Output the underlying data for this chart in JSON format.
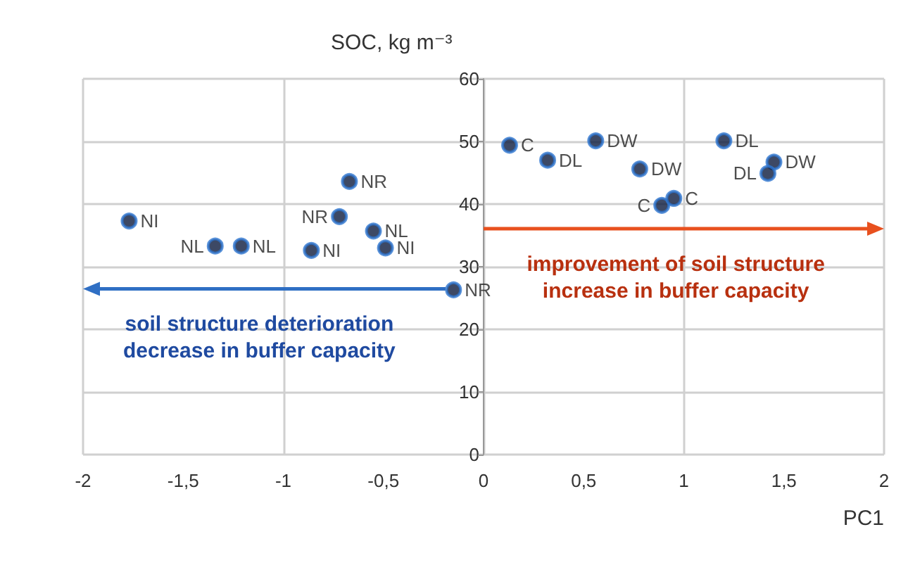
{
  "chart_data": {
    "type": "scatter",
    "xlabel": "PC1",
    "ylabel": "SOC, kg m⁻³",
    "x": [
      -1.77,
      -1.34,
      -1.21,
      -0.86,
      -0.67,
      -0.72,
      -0.55,
      -0.49,
      -0.15,
      0.13,
      0.32,
      0.56,
      0.78,
      0.89,
      0.95,
      1.2,
      1.45,
      1.42
    ],
    "series": [
      {
        "color": "#0d1b3e",
        "values": [
          37.3,
          33.3,
          33.3,
          32.6,
          43.6,
          38.0,
          35.7,
          33.0,
          26.3,
          49.4,
          47.0,
          50.1,
          45.6,
          39.8,
          40.9,
          50.1,
          46.7,
          44.9
        ]
      }
    ],
    "xlim": [
      -2,
      2
    ],
    "xticks": [
      {
        "value": -2,
        "label": "-2"
      },
      {
        "value": -1.5,
        "label": "-1,5"
      },
      {
        "value": -1,
        "label": "-1"
      },
      {
        "value": -0.5,
        "label": "-0,5"
      },
      {
        "value": 0,
        "label": "0"
      },
      {
        "value": 0.5,
        "label": "0,5"
      },
      {
        "value": 1,
        "label": "1"
      },
      {
        "value": 1.5,
        "label": "1,5"
      },
      {
        "value": 2,
        "label": "2"
      }
    ],
    "ylim": [
      0,
      60
    ],
    "yticks": [
      0,
      10,
      20,
      30,
      40,
      50,
      60
    ],
    "grid": true,
    "marker": "circle",
    "annotations": [
      {
        "text": "NI",
        "x": -1.77,
        "y": 37.3
      },
      {
        "text": "NL",
        "x": -1.34,
        "y": 33.3
      },
      {
        "text": "NL",
        "x": -1.21,
        "y": 33.3
      },
      {
        "text": "NI",
        "x": -0.86,
        "y": 32.6
      },
      {
        "text": "NR",
        "x": -0.67,
        "y": 43.6
      },
      {
        "text": "NR",
        "x": -0.72,
        "y": 38.0
      },
      {
        "text": "NL",
        "x": -0.55,
        "y": 35.7
      },
      {
        "text": "NI",
        "x": -0.49,
        "y": 33.0
      },
      {
        "text": "NR",
        "x": -0.15,
        "y": 26.3
      },
      {
        "text": "C",
        "x": 0.13,
        "y": 49.4
      },
      {
        "text": "DL",
        "x": 0.32,
        "y": 47.0
      },
      {
        "text": "DW",
        "x": 0.56,
        "y": 50.1
      },
      {
        "text": "DW",
        "x": 0.78,
        "y": 45.6
      },
      {
        "text": "C",
        "x": 0.89,
        "y": 39.8
      },
      {
        "text": "C",
        "x": 0.95,
        "y": 40.9
      },
      {
        "text": "DL",
        "x": 1.2,
        "y": 50.1
      },
      {
        "text": "DW",
        "x": 1.45,
        "y": 46.7
      },
      {
        "text": "DL",
        "x": 1.42,
        "y": 44.9
      },
      "improvement of soil structure\nincrease in buffer capacity",
      "soil structure deterioration\ndecrease in buffer capacity"
    ]
  }
}
